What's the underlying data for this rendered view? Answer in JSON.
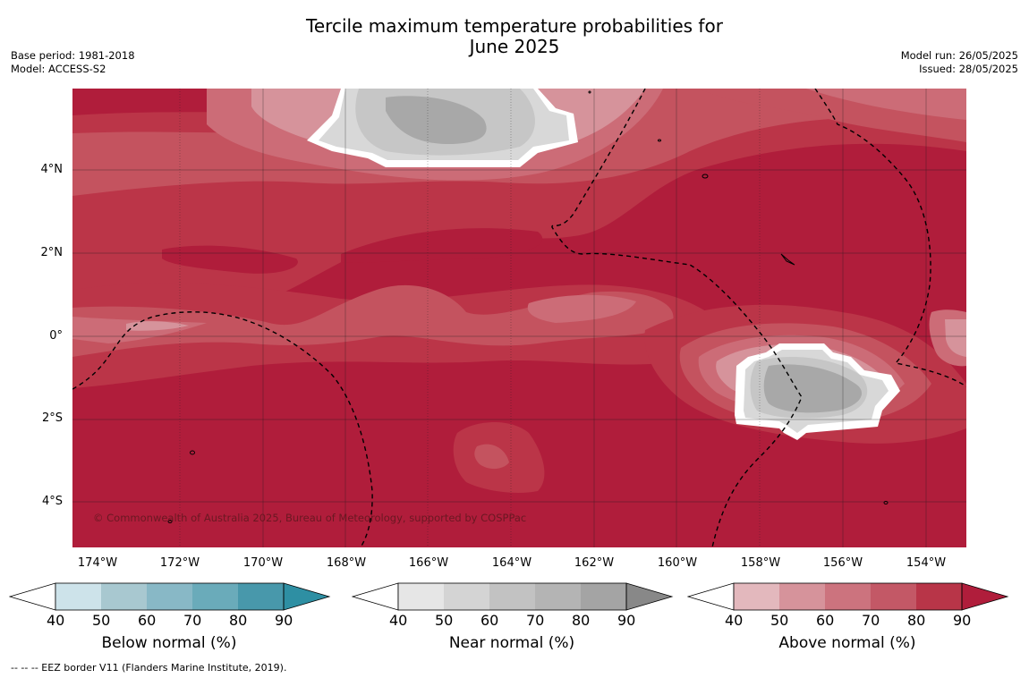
{
  "title_line1": "Tercile maximum temperature probabilities for",
  "title_line2": "June 2025",
  "base_period": "Base period: 1981-2018",
  "model": "Model: ACCESS-S2",
  "model_run": "Model run: 26/05/2025",
  "issued": "Issued: 28/05/2025",
  "credit": "© Commonwealth of Australia 2025, Bureau of Meteorology, supported by COSPPac",
  "footnote": "--  --  -- EEZ border V11 (Flanders Marine Institute, 2019).",
  "lat_labels": [
    "4°N",
    "2°N",
    "0°",
    "2°S",
    "4°S"
  ],
  "lon_labels": [
    "174°W",
    "172°W",
    "170°W",
    "168°W",
    "166°W",
    "164°W",
    "162°W",
    "160°W",
    "158°W",
    "156°W",
    "154°W"
  ],
  "colorbars": [
    {
      "title": "Below normal (%)",
      "ticks": [
        "40",
        "50",
        "60",
        "70",
        "80",
        "90"
      ],
      "colors": [
        "#cde3ea",
        "#a8c8d0",
        "#88b8c6",
        "#6aabba",
        "#4898ab",
        "#2e8fa3"
      ]
    },
    {
      "title": "Near normal (%)",
      "ticks": [
        "40",
        "50",
        "60",
        "70",
        "80",
        "90"
      ],
      "colors": [
        "#e6e6e6",
        "#d4d4d4",
        "#c2c2c2",
        "#b4b4b4",
        "#a4a4a4",
        "#888888"
      ]
    },
    {
      "title": "Above normal (%)",
      "ticks": [
        "40",
        "50",
        "60",
        "70",
        "80",
        "90"
      ],
      "colors": [
        "#e3b8bd",
        "#d6939b",
        "#cc737e",
        "#c35866",
        "#b83548",
        "#b01d3b"
      ]
    }
  ],
  "colors": {
    "above_90": "#b01d3b",
    "above_80": "#bb3548",
    "above_70": "#c4535f",
    "above_60": "#cc6c77",
    "above_50": "#d6939b",
    "near_60": "#d8d8d8",
    "near_70": "#c6c6c6",
    "near_80": "#a8a8a8"
  }
}
